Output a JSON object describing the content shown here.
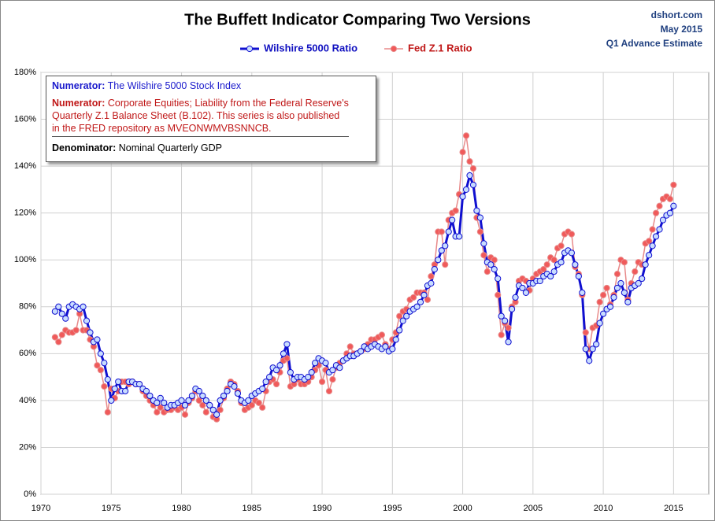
{
  "chart_data": {
    "type": "line",
    "title": "The Buffett Indicator  Comparing Two Versions",
    "source_lines": [
      "dshort.com",
      "May 2015",
      "Q1 Advance Estimate"
    ],
    "annotations": [
      {
        "label": "Numerator:",
        "lines": [
          "The Wilshire 5000 Stock Index"
        ],
        "color": "#1a1acc"
      },
      {
        "label": "Numerator:",
        "lines": [
          "Corporate Equities; Liability from the Federal Reserve's",
          "Quarterly Z.1 Balance Sheet (B.102). This series is also published",
          "in the FRED repository as MVEONWMVBSNNCB."
        ],
        "color": "#c01818"
      },
      {
        "label": "Denominator:",
        "lines": [
          "Nominal Quarterly GDP"
        ],
        "color": "#000000"
      }
    ],
    "x": [
      1971,
      1971.25,
      1971.5,
      1971.75,
      1972,
      1972.25,
      1972.5,
      1972.75,
      1973,
      1973.25,
      1973.5,
      1973.75,
      1974,
      1974.25,
      1974.5,
      1974.75,
      1975,
      1975.25,
      1975.5,
      1975.75,
      1976,
      1976.25,
      1976.5,
      1976.75,
      1977,
      1977.25,
      1977.5,
      1977.75,
      1978,
      1978.25,
      1978.5,
      1978.75,
      1979,
      1979.25,
      1979.5,
      1979.75,
      1980,
      1980.25,
      1980.5,
      1980.75,
      1981,
      1981.25,
      1981.5,
      1981.75,
      1982,
      1982.25,
      1982.5,
      1982.75,
      1983,
      1983.25,
      1983.5,
      1983.75,
      1984,
      1984.25,
      1984.5,
      1984.75,
      1985,
      1985.25,
      1985.5,
      1985.75,
      1986,
      1986.25,
      1986.5,
      1986.75,
      1987,
      1987.25,
      1987.5,
      1987.75,
      1988,
      1988.25,
      1988.5,
      1988.75,
      1989,
      1989.25,
      1989.5,
      1989.75,
      1990,
      1990.25,
      1990.5,
      1990.75,
      1991,
      1991.25,
      1991.5,
      1991.75,
      1992,
      1992.25,
      1992.5,
      1992.75,
      1993,
      1993.25,
      1993.5,
      1993.75,
      1994,
      1994.25,
      1994.5,
      1994.75,
      1995,
      1995.25,
      1995.5,
      1995.75,
      1996,
      1996.25,
      1996.5,
      1996.75,
      1997,
      1997.25,
      1997.5,
      1997.75,
      1998,
      1998.25,
      1998.5,
      1998.75,
      1999,
      1999.25,
      1999.5,
      1999.75,
      2000,
      2000.25,
      2000.5,
      2000.75,
      2001,
      2001.25,
      2001.5,
      2001.75,
      2002,
      2002.25,
      2002.5,
      2002.75,
      2003,
      2003.25,
      2003.5,
      2003.75,
      2004,
      2004.25,
      2004.5,
      2004.75,
      2005,
      2005.25,
      2005.5,
      2005.75,
      2006,
      2006.25,
      2006.5,
      2006.75,
      2007,
      2007.25,
      2007.5,
      2007.75,
      2008,
      2008.25,
      2008.5,
      2008.75,
      2009,
      2009.25,
      2009.5,
      2009.75,
      2010,
      2010.25,
      2010.5,
      2010.75,
      2011,
      2011.25,
      2011.5,
      2011.75,
      2012,
      2012.25,
      2012.5,
      2012.75,
      2013,
      2013.25,
      2013.5,
      2013.75,
      2014,
      2014.25,
      2014.5,
      2014.75,
      2015
    ],
    "series": [
      {
        "name": "Wilshire 5000 Ratio",
        "color": "#1010d0",
        "marker_fill": "#c8dcff",
        "line_width": 3,
        "values": [
          78,
          80,
          77,
          75,
          80,
          81,
          80,
          79,
          80,
          74,
          69,
          65,
          66,
          60,
          56,
          49,
          40,
          45,
          48,
          44,
          44,
          48,
          48,
          47,
          47,
          45,
          44,
          42,
          40,
          39,
          41,
          39,
          37,
          38,
          38,
          39,
          40,
          38,
          40,
          42,
          45,
          44,
          42,
          40,
          38,
          36,
          34,
          40,
          42,
          44,
          47,
          46,
          43,
          40,
          39,
          40,
          42,
          43,
          44,
          45,
          48,
          50,
          54,
          53,
          55,
          60,
          64,
          52,
          49,
          50,
          50,
          49,
          50,
          52,
          56,
          58,
          57,
          56,
          52,
          53,
          55,
          54,
          57,
          58,
          59,
          59,
          60,
          61,
          63,
          62,
          63,
          64,
          63,
          62,
          63,
          61,
          62,
          66,
          70,
          74,
          76,
          78,
          79,
          80,
          82,
          85,
          89,
          90,
          96,
          100,
          104,
          106,
          112,
          117,
          110,
          110,
          127,
          130,
          136,
          132,
          121,
          118,
          107,
          99,
          98,
          96,
          92,
          76,
          74,
          65,
          79,
          84,
          89,
          88,
          86,
          90,
          90,
          91,
          91,
          93,
          94,
          93,
          95,
          98,
          99,
          103,
          104,
          103,
          98,
          93,
          86,
          62,
          57,
          62,
          64,
          73,
          77,
          79,
          80,
          84,
          88,
          90,
          86,
          82,
          88,
          89,
          90,
          92,
          98,
          102,
          106,
          110,
          113,
          117,
          119,
          120,
          123
        ]
      },
      {
        "name": "Fed Z.1 Ratio",
        "color": "#e88a8a",
        "marker_fill": "#f05a5a",
        "line_width": 1.5,
        "values": [
          67,
          65,
          68,
          70,
          69,
          69,
          70,
          77,
          70,
          70,
          66,
          63,
          55,
          53,
          46,
          35,
          45,
          41,
          44,
          48,
          48,
          47,
          48,
          47,
          47,
          44,
          42,
          40,
          38,
          35,
          37,
          35,
          36,
          36,
          37,
          36,
          37,
          34,
          39,
          41,
          44,
          40,
          38,
          35,
          38,
          33,
          32,
          36,
          41,
          45,
          48,
          47,
          44,
          39,
          36,
          37,
          38,
          40,
          39,
          37,
          44,
          48,
          49,
          47,
          52,
          57,
          58,
          46,
          47,
          49,
          47,
          47,
          48,
          50,
          53,
          55,
          48,
          53,
          44,
          49,
          54,
          56,
          57,
          60,
          63,
          60,
          60,
          61,
          62,
          64,
          66,
          66,
          67,
          68,
          64,
          62,
          66,
          69,
          76,
          78,
          79,
          83,
          84,
          86,
          86,
          86,
          83,
          93,
          98,
          112,
          112,
          98,
          117,
          120,
          121,
          128,
          146,
          153,
          142,
          139,
          118,
          112,
          102,
          95,
          101,
          100,
          85,
          68,
          73,
          71,
          80,
          82,
          91,
          92,
          91,
          87,
          92,
          94,
          95,
          96,
          98,
          101,
          100,
          105,
          106,
          111,
          112,
          111,
          97,
          94,
          85,
          69,
          62,
          71,
          72,
          82,
          85,
          88,
          81,
          85,
          94,
          100,
          99,
          83,
          90,
          95,
          99,
          98,
          107,
          108,
          113,
          120,
          123,
          126,
          127,
          126,
          132
        ]
      }
    ],
    "xlim": [
      1970,
      2017.5
    ],
    "xticks": [
      1970,
      1975,
      1980,
      1985,
      1990,
      1995,
      2000,
      2005,
      2010,
      2015
    ],
    "ylim": [
      0,
      180
    ],
    "yticks": [
      {
        "value": 0,
        "label": "0%"
      },
      {
        "value": 20,
        "label": "20%"
      },
      {
        "value": 40,
        "label": "40%"
      },
      {
        "value": 60,
        "label": "60%"
      },
      {
        "value": 80,
        "label": "80%"
      },
      {
        "value": 100,
        "label": "100%"
      },
      {
        "value": 120,
        "label": "120%"
      },
      {
        "value": 140,
        "label": "140%"
      },
      {
        "value": 160,
        "label": "160%"
      },
      {
        "value": 180,
        "label": "180%"
      }
    ],
    "grid": true
  }
}
